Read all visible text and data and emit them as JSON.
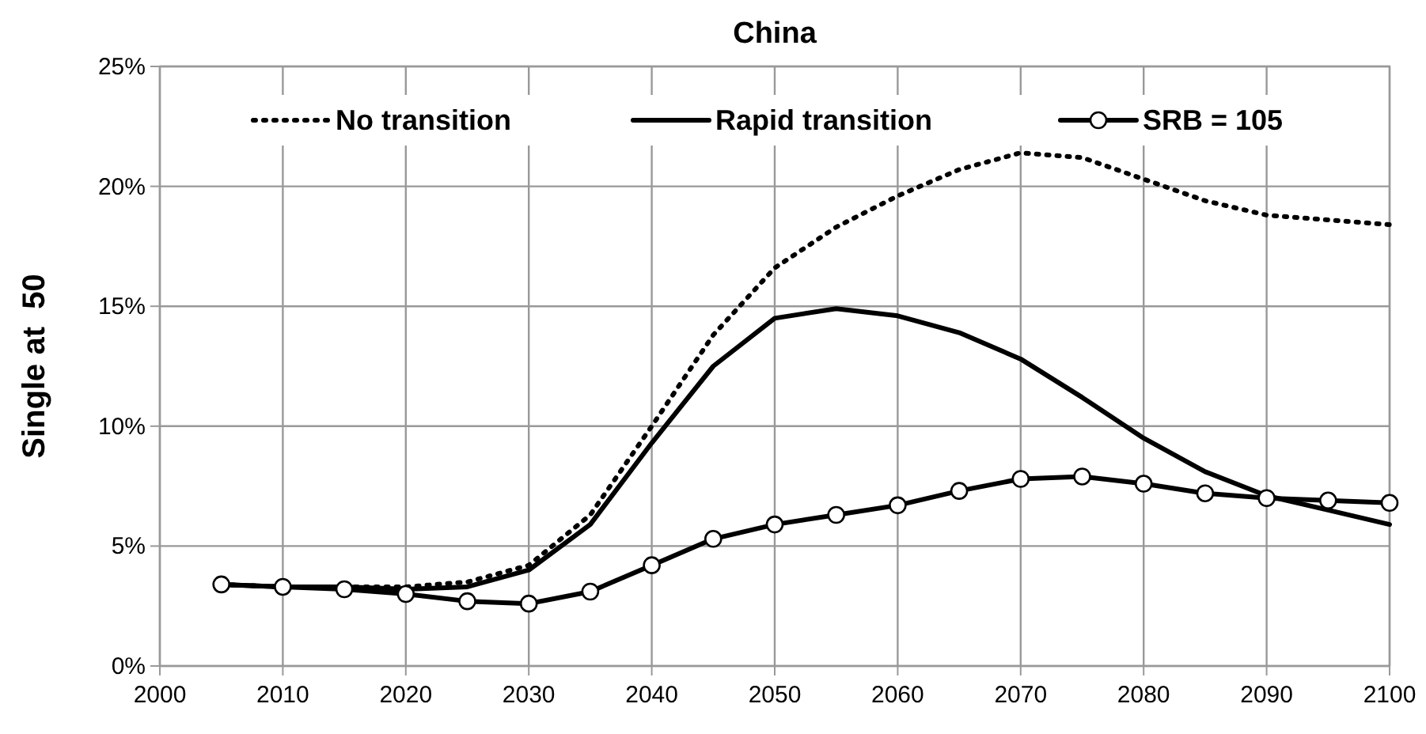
{
  "chart_data": {
    "type": "line",
    "title": "China",
    "ylabel": "Single at  50",
    "x": [
      2005,
      2010,
      2015,
      2020,
      2025,
      2030,
      2035,
      2040,
      2045,
      2050,
      2055,
      2060,
      2065,
      2070,
      2075,
      2080,
      2085,
      2090,
      2095,
      2100
    ],
    "xlim": [
      2000,
      2100
    ],
    "xticks": [
      2000,
      2010,
      2020,
      2030,
      2040,
      2050,
      2060,
      2070,
      2080,
      2090,
      2100
    ],
    "ylim": [
      0,
      25
    ],
    "yticks": [
      {
        "value": 0,
        "label": "0%"
      },
      {
        "value": 5,
        "label": "5%"
      },
      {
        "value": 10,
        "label": "10%"
      },
      {
        "value": 15,
        "label": "15%"
      },
      {
        "value": 20,
        "label": "20%"
      },
      {
        "value": 25,
        "label": "25%"
      }
    ],
    "grid": true,
    "legend": "top",
    "series": [
      {
        "name": "No transition",
        "color": "#000000",
        "line_style": "dotted",
        "marker": "none",
        "values": [
          3.4,
          3.3,
          3.3,
          3.3,
          3.5,
          4.2,
          6.3,
          10.0,
          13.8,
          16.6,
          18.3,
          19.6,
          20.7,
          21.4,
          21.2,
          20.3,
          19.4,
          18.8,
          18.6,
          18.4
        ]
      },
      {
        "name": "Rapid transition",
        "color": "#000000",
        "line_style": "solid",
        "marker": "none",
        "values": [
          3.4,
          3.3,
          3.3,
          3.2,
          3.3,
          4.0,
          5.9,
          9.3,
          12.5,
          14.5,
          14.9,
          14.6,
          13.9,
          12.8,
          11.2,
          9.5,
          8.1,
          7.1,
          6.5,
          5.9
        ]
      },
      {
        "name": "SRB = 105",
        "color": "#000000",
        "line_style": "solid",
        "marker": "circle",
        "values": [
          3.4,
          3.3,
          3.2,
          3.0,
          2.7,
          2.6,
          3.1,
          4.2,
          5.3,
          5.9,
          6.3,
          6.7,
          7.3,
          7.8,
          7.9,
          7.6,
          7.2,
          7.0,
          6.9,
          6.8
        ]
      }
    ]
  }
}
